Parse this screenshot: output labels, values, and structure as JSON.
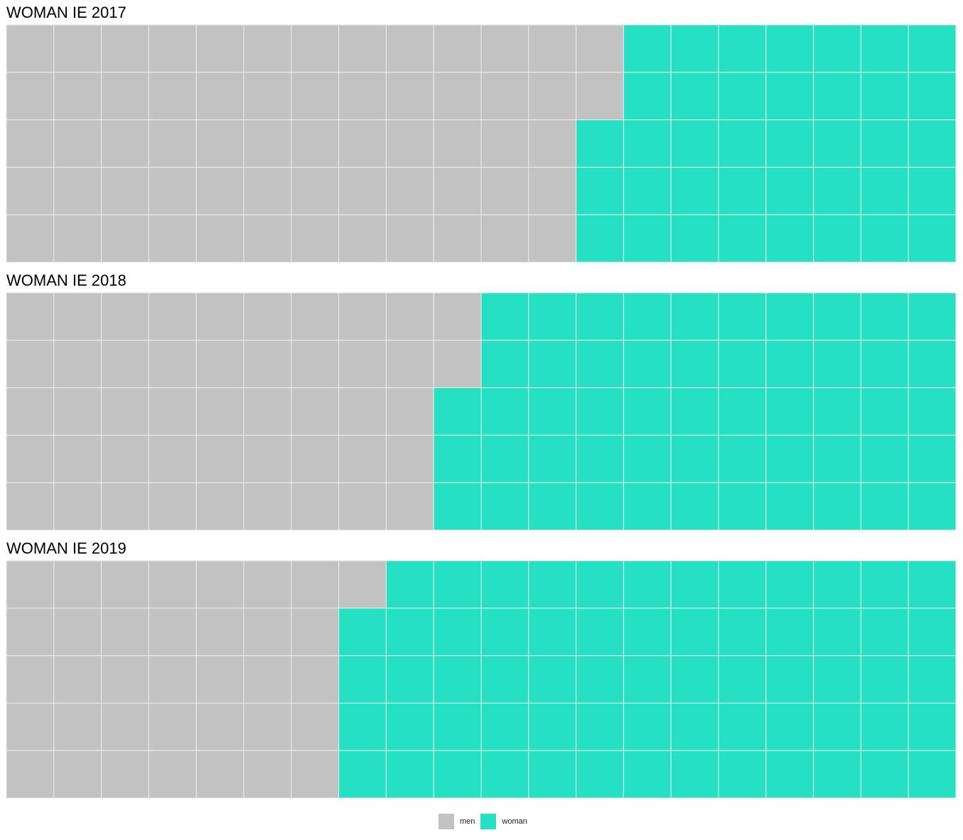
{
  "colors": {
    "men": "#c2c2c2",
    "woman": "#26e0c4",
    "grid": "#ececec"
  },
  "legend": {
    "men_label": "men",
    "woman_label": "woman"
  },
  "chart_data": [
    {
      "type": "waffle",
      "title": "WOMAN IE 2017",
      "rows": 5,
      "columns": 20,
      "series": [
        {
          "name": "men",
          "value": 62
        },
        {
          "name": "woman",
          "value": 38
        }
      ]
    },
    {
      "type": "waffle",
      "title": "WOMAN IE 2018",
      "rows": 5,
      "columns": 20,
      "series": [
        {
          "name": "men",
          "value": 47
        },
        {
          "name": "woman",
          "value": 53
        }
      ]
    },
    {
      "type": "waffle",
      "title": "WOMAN IE 2019",
      "rows": 5,
      "columns": 20,
      "series": [
        {
          "name": "men",
          "value": 36
        },
        {
          "name": "woman",
          "value": 64
        }
      ]
    }
  ]
}
